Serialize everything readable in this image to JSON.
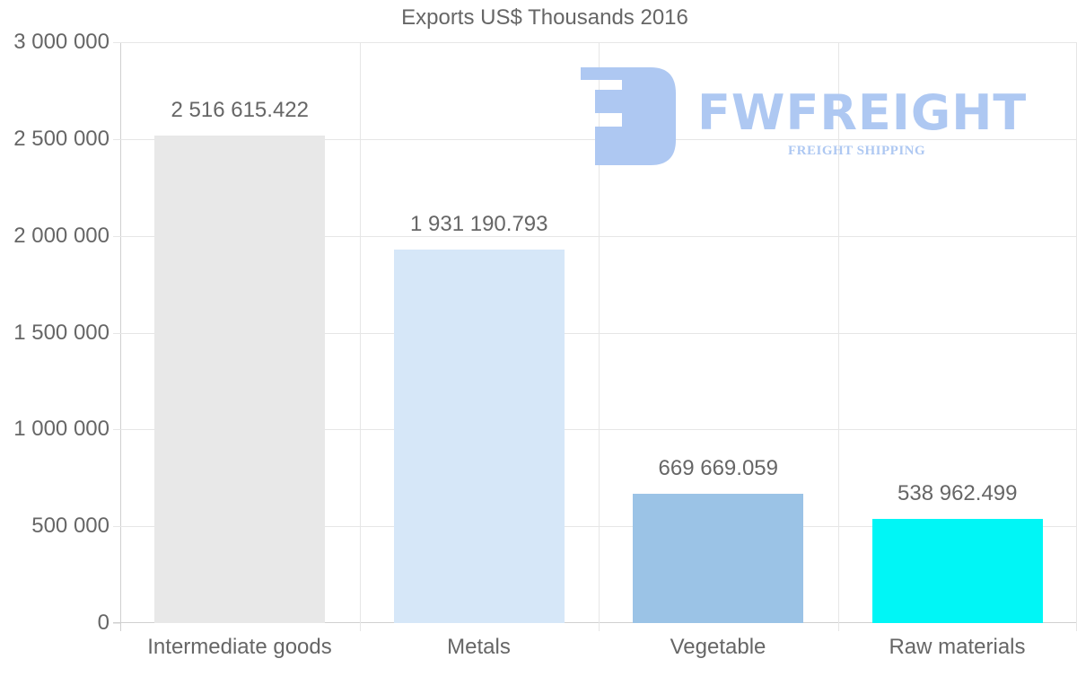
{
  "chart_data": {
    "type": "bar",
    "title": "Exports US$ Thousands 2016",
    "xlabel": "",
    "ylabel": "",
    "categories": [
      "Intermediate goods",
      "Metals",
      "Vegetable",
      "Raw materials"
    ],
    "values": [
      2516615.422,
      1931190.793,
      669669.059,
      538962.499
    ],
    "value_labels": [
      "2 516 615.422",
      "1 931 190.793",
      "669 669.059",
      "538 962.499"
    ],
    "bar_colors": [
      "#e8e8e8",
      "#d6e7f8",
      "#9bc3e6",
      "#00f6f6"
    ],
    "ylim": [
      0,
      3000000
    ],
    "y_ticks": [
      0,
      500000,
      1000000,
      1500000,
      2000000,
      2500000,
      3000000
    ],
    "y_tick_labels": [
      "0",
      "500 000",
      "1 000 000",
      "1 500 000",
      "2 000 000",
      "2 500 000",
      "3 000 000"
    ],
    "grid": true,
    "legend": "none"
  },
  "watermark": {
    "brand": "FWFREIGHT",
    "tagline": "FREIGHT SHIPPING",
    "color": "#aec8f2"
  }
}
